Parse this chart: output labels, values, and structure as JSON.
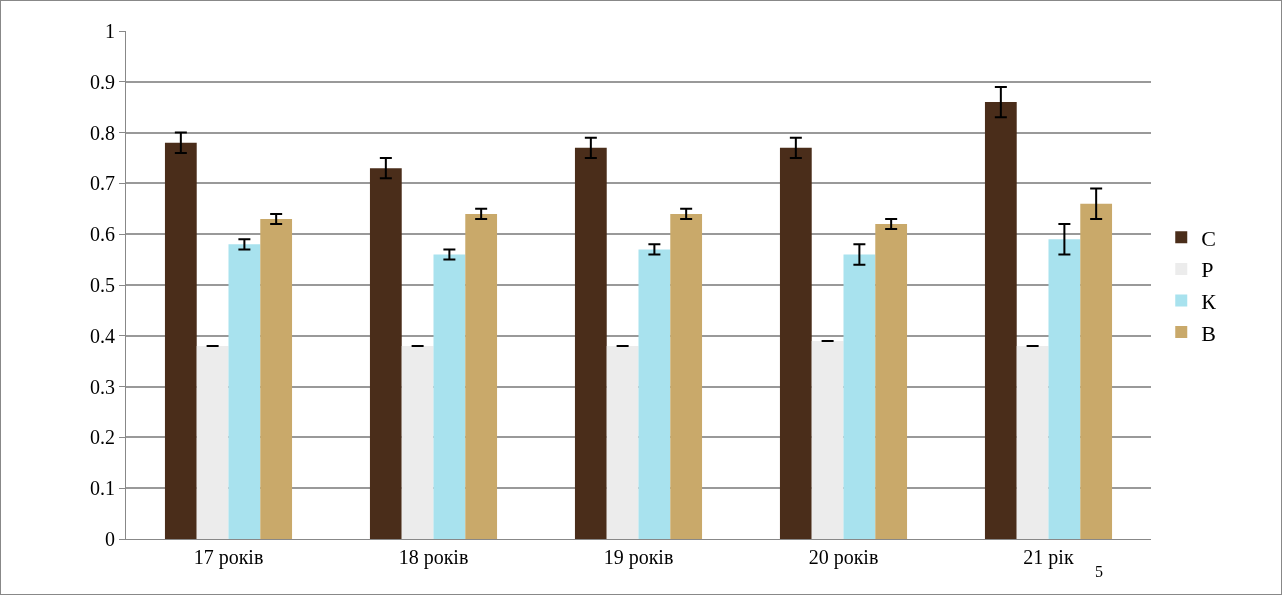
{
  "chart_data": {
    "type": "bar",
    "categories": [
      "17 років",
      "18 років",
      "19 років",
      "20 років",
      "21 рік"
    ],
    "series": [
      {
        "name": "С",
        "color": "#4a2d1a",
        "values": [
          0.78,
          0.73,
          0.77,
          0.77,
          0.86
        ],
        "errors": [
          0.02,
          0.02,
          0.02,
          0.02,
          0.03
        ]
      },
      {
        "name": "Р",
        "color": "#ececec",
        "values": [
          0.38,
          0.38,
          0.38,
          0.39,
          0.38
        ],
        "errors": [
          0,
          0,
          0,
          0,
          0
        ]
      },
      {
        "name": "К",
        "color": "#a8e2ee",
        "values": [
          0.58,
          0.56,
          0.57,
          0.56,
          0.59
        ],
        "errors": [
          0.01,
          0.01,
          0.01,
          0.02,
          0.03
        ]
      },
      {
        "name": "В",
        "color": "#c9a96a",
        "values": [
          0.63,
          0.64,
          0.64,
          0.62,
          0.66
        ],
        "errors": [
          0.01,
          0.01,
          0.01,
          0.01,
          0.03
        ]
      }
    ],
    "ylim": [
      0,
      1
    ],
    "yticks": [
      0,
      0.1,
      0.2,
      0.3,
      0.4,
      0.5,
      0.6,
      0.7,
      0.8,
      0.9,
      1
    ],
    "grid": "y",
    "legend": "right",
    "annotations": [
      "5"
    ]
  }
}
